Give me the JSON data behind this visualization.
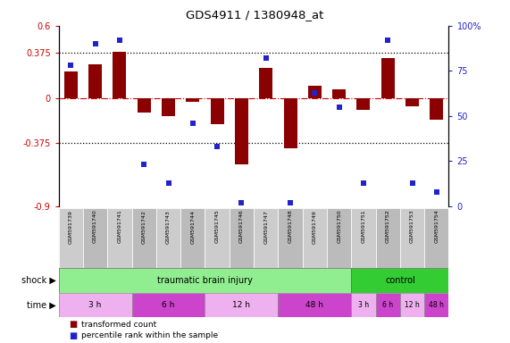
{
  "title": "GDS4911 / 1380948_at",
  "samples": [
    "GSM591739",
    "GSM591740",
    "GSM591741",
    "GSM591742",
    "GSM591743",
    "GSM591744",
    "GSM591745",
    "GSM591746",
    "GSM591747",
    "GSM591748",
    "GSM591749",
    "GSM591750",
    "GSM591751",
    "GSM591752",
    "GSM591753",
    "GSM591754"
  ],
  "transformed_count": [
    0.22,
    0.28,
    0.38,
    -0.12,
    -0.15,
    -0.03,
    -0.22,
    -0.55,
    0.25,
    -0.42,
    0.1,
    0.07,
    -0.1,
    0.33,
    -0.07,
    -0.18
  ],
  "percentile_rank": [
    78,
    90,
    92,
    23,
    13,
    46,
    33,
    2,
    82,
    2,
    63,
    55,
    13,
    92,
    13,
    8
  ],
  "bar_color": "#8B0000",
  "dot_color": "#2222CC",
  "ylim_left": [
    -0.9,
    0.6
  ],
  "ylim_right": [
    0,
    100
  ],
  "yticks_left": [
    -0.9,
    -0.375,
    0,
    0.375,
    0.6
  ],
  "yticks_right": [
    0,
    25,
    50,
    75,
    100
  ],
  "ytick_labels_left": [
    "-0.9",
    "-0.375",
    "0",
    "0.375",
    "0.6"
  ],
  "ytick_labels_right": [
    "0",
    "25",
    "50",
    "75",
    "100%"
  ],
  "hlines": [
    0.375,
    -0.375
  ],
  "zero_line": 0.0,
  "shock_tbi_color": "#90EE90",
  "shock_ctrl_color": "#33CC33",
  "time_colors_alt": [
    "#EEB0EE",
    "#CC44CC",
    "#EEB0EE",
    "#CC44CC",
    "#EEB0EE",
    "#CC44CC",
    "#EEB0EE",
    "#CC44CC"
  ],
  "time_labels": [
    "3 h",
    "6 h",
    "12 h",
    "48 h",
    "3 h",
    "6 h",
    "12 h",
    "48 h"
  ],
  "time_starts": [
    0,
    3,
    6,
    9,
    12,
    13,
    14,
    15
  ],
  "time_spans": [
    3,
    3,
    3,
    3,
    1,
    1,
    1,
    1
  ],
  "legend_items": [
    {
      "label": "transformed count",
      "color": "#8B0000"
    },
    {
      "label": "percentile rank within the sample",
      "color": "#2222CC"
    }
  ],
  "shock_label": "shock",
  "time_label": "time",
  "plot_bg": "#FFFFFF"
}
